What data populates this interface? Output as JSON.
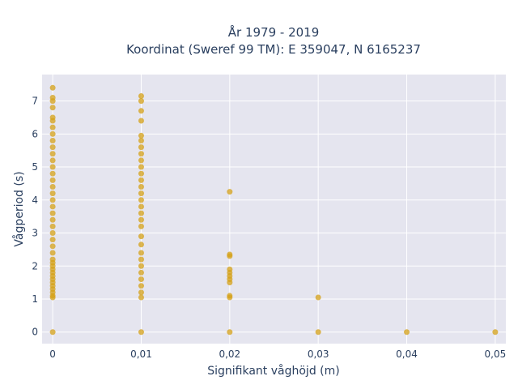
{
  "chart_data": {
    "type": "scatter",
    "title_lines": [
      "År 1979 - 2019",
      "Koordinat (Sweref 99 TM): E 359047, N 6165237"
    ],
    "xlabel": "Signifikant våghöjd (m)",
    "ylabel": "Vågperiod (s)",
    "xlim": [
      -0.0012,
      0.0512
    ],
    "ylim": [
      -0.35,
      7.8
    ],
    "x_ticks": [
      0,
      0.01,
      0.02,
      0.03,
      0.04,
      0.05
    ],
    "x_tick_labels": [
      "0",
      "0,01",
      "0,02",
      "0,03",
      "0,04",
      "0,05"
    ],
    "y_ticks": [
      0,
      1,
      2,
      3,
      4,
      5,
      6,
      7
    ],
    "y_tick_labels": [
      "0",
      "1",
      "2",
      "3",
      "4",
      "5",
      "6",
      "7"
    ],
    "grid": true,
    "marker_color": "#d4a017",
    "plot_background": "#e5e5ef",
    "series": [
      {
        "points": [
          {
            "x": 0,
            "y": 0
          },
          {
            "x": 0,
            "y": 1.05
          },
          {
            "x": 0,
            "y": 1.1
          },
          {
            "x": 0,
            "y": 1.2
          },
          {
            "x": 0,
            "y": 1.3
          },
          {
            "x": 0,
            "y": 1.4
          },
          {
            "x": 0,
            "y": 1.5
          },
          {
            "x": 0,
            "y": 1.6
          },
          {
            "x": 0,
            "y": 1.7
          },
          {
            "x": 0,
            "y": 1.8
          },
          {
            "x": 0,
            "y": 1.9
          },
          {
            "x": 0,
            "y": 2.0
          },
          {
            "x": 0,
            "y": 2.1
          },
          {
            "x": 0,
            "y": 2.2
          },
          {
            "x": 0,
            "y": 2.4
          },
          {
            "x": 0,
            "y": 2.6
          },
          {
            "x": 0,
            "y": 2.8
          },
          {
            "x": 0,
            "y": 3.0
          },
          {
            "x": 0,
            "y": 3.2
          },
          {
            "x": 0,
            "y": 3.4
          },
          {
            "x": 0,
            "y": 3.6
          },
          {
            "x": 0,
            "y": 3.8
          },
          {
            "x": 0,
            "y": 4.0
          },
          {
            "x": 0,
            "y": 4.2
          },
          {
            "x": 0,
            "y": 4.4
          },
          {
            "x": 0,
            "y": 4.6
          },
          {
            "x": 0,
            "y": 4.8
          },
          {
            "x": 0,
            "y": 5.0
          },
          {
            "x": 0,
            "y": 5.2
          },
          {
            "x": 0,
            "y": 5.4
          },
          {
            "x": 0,
            "y": 5.6
          },
          {
            "x": 0,
            "y": 5.8
          },
          {
            "x": 0,
            "y": 6.0
          },
          {
            "x": 0,
            "y": 6.2
          },
          {
            "x": 0,
            "y": 6.4
          },
          {
            "x": 0,
            "y": 6.5
          },
          {
            "x": 0,
            "y": 6.8
          },
          {
            "x": 0,
            "y": 7.0
          },
          {
            "x": 0,
            "y": 7.1
          },
          {
            "x": 0,
            "y": 7.4
          },
          {
            "x": 0.01,
            "y": 0
          },
          {
            "x": 0.01,
            "y": 1.05
          },
          {
            "x": 0.01,
            "y": 1.2
          },
          {
            "x": 0.01,
            "y": 1.4
          },
          {
            "x": 0.01,
            "y": 1.6
          },
          {
            "x": 0.01,
            "y": 1.8
          },
          {
            "x": 0.01,
            "y": 2.0
          },
          {
            "x": 0.01,
            "y": 2.2
          },
          {
            "x": 0.01,
            "y": 2.4
          },
          {
            "x": 0.01,
            "y": 2.65
          },
          {
            "x": 0.01,
            "y": 2.9
          },
          {
            "x": 0.01,
            "y": 3.2
          },
          {
            "x": 0.01,
            "y": 3.4
          },
          {
            "x": 0.01,
            "y": 3.6
          },
          {
            "x": 0.01,
            "y": 3.8
          },
          {
            "x": 0.01,
            "y": 4.0
          },
          {
            "x": 0.01,
            "y": 4.2
          },
          {
            "x": 0.01,
            "y": 4.4
          },
          {
            "x": 0.01,
            "y": 4.6
          },
          {
            "x": 0.01,
            "y": 4.8
          },
          {
            "x": 0.01,
            "y": 5.0
          },
          {
            "x": 0.01,
            "y": 5.2
          },
          {
            "x": 0.01,
            "y": 5.4
          },
          {
            "x": 0.01,
            "y": 5.6
          },
          {
            "x": 0.01,
            "y": 5.8
          },
          {
            "x": 0.01,
            "y": 5.95
          },
          {
            "x": 0.01,
            "y": 6.4
          },
          {
            "x": 0.01,
            "y": 6.7
          },
          {
            "x": 0.01,
            "y": 7.0
          },
          {
            "x": 0.01,
            "y": 7.15
          },
          {
            "x": 0.02,
            "y": 0
          },
          {
            "x": 0.02,
            "y": 1.05
          },
          {
            "x": 0.02,
            "y": 1.1
          },
          {
            "x": 0.02,
            "y": 1.5
          },
          {
            "x": 0.02,
            "y": 1.6
          },
          {
            "x": 0.02,
            "y": 1.7
          },
          {
            "x": 0.02,
            "y": 1.8
          },
          {
            "x": 0.02,
            "y": 1.9
          },
          {
            "x": 0.02,
            "y": 2.3
          },
          {
            "x": 0.02,
            "y": 2.35
          },
          {
            "x": 0.02,
            "y": 4.25
          },
          {
            "x": 0.03,
            "y": 0
          },
          {
            "x": 0.03,
            "y": 1.05
          },
          {
            "x": 0.04,
            "y": 0
          },
          {
            "x": 0.05,
            "y": 0
          }
        ]
      }
    ]
  }
}
